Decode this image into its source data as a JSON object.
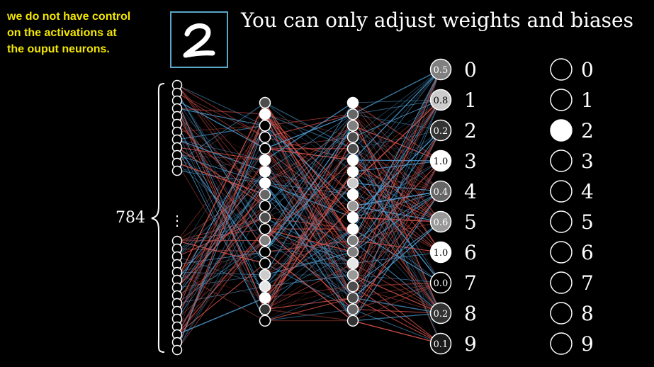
{
  "note": {
    "lines": [
      "we do not have control",
      "on the activations at",
      "the ouput neurons."
    ],
    "color": "#f2e600"
  },
  "headline": "You can only adjust weights and biases",
  "input_digit": "2",
  "input_count_label": "784",
  "input_ellipsis": "⋮",
  "hidden1_activations": [
    0.3,
    1.0,
    0.0,
    0.0,
    0.0,
    1.0,
    1.0,
    1.0,
    0.4,
    0.0,
    0.3,
    0.0,
    0.5,
    0.0,
    0.0,
    0.8,
    0.9,
    1.0,
    0.2,
    0.0
  ],
  "hidden2_activations": [
    1.0,
    0.4,
    0.5,
    0.3,
    0.3,
    1.0,
    1.0,
    0.8,
    1.0,
    0.6,
    1.0,
    1.0,
    0.5,
    0.5,
    0.9,
    0.6,
    0.3,
    0.3,
    0.4,
    0.2
  ],
  "outputs": [
    {
      "digit": "0",
      "activation": "0.5",
      "level": 0.5
    },
    {
      "digit": "1",
      "activation": "0.8",
      "level": 0.8
    },
    {
      "digit": "2",
      "activation": "0.2",
      "level": 0.2
    },
    {
      "digit": "3",
      "activation": "1.0",
      "level": 1.0
    },
    {
      "digit": "4",
      "activation": "0.4",
      "level": 0.4
    },
    {
      "digit": "5",
      "activation": "0.6",
      "level": 0.6
    },
    {
      "digit": "6",
      "activation": "1.0",
      "level": 1.0
    },
    {
      "digit": "7",
      "activation": "0.0",
      "level": 0.0
    },
    {
      "digit": "8",
      "activation": "0.2",
      "level": 0.2
    },
    {
      "digit": "9",
      "activation": "0.1",
      "level": 0.1
    }
  ],
  "targets": [
    {
      "digit": "0",
      "level": 0
    },
    {
      "digit": "1",
      "level": 0
    },
    {
      "digit": "2",
      "level": 1
    },
    {
      "digit": "3",
      "level": 0
    },
    {
      "digit": "4",
      "level": 0
    },
    {
      "digit": "5",
      "level": 0
    },
    {
      "digit": "6",
      "level": 0
    },
    {
      "digit": "7",
      "level": 0
    },
    {
      "digit": "8",
      "level": 0
    },
    {
      "digit": "9",
      "level": 0
    }
  ],
  "colors": {
    "positive_weight": "#d9534a",
    "negative_weight": "#4f9fd6",
    "frame": "#5aa7c8",
    "neuron_stroke": "#ffffff"
  }
}
